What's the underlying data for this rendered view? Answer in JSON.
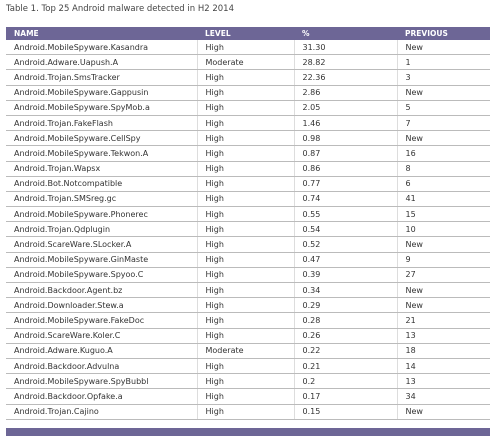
{
  "title": "Table 1. Top 25 Android malware detected in H2 2014",
  "table": {
    "header": [
      "NAME",
      "LEVEL",
      "%",
      "PREVIOUS"
    ],
    "rows": [
      [
        "Android.MobileSpyware.Kasandra",
        "High",
        "31.30",
        "New"
      ],
      [
        "Android.Adware.Uapush.A",
        "Moderate",
        "28.82",
        "1"
      ],
      [
        "Android.Trojan.SmsTracker",
        "High",
        "22.36",
        "3"
      ],
      [
        "Android.MobileSpyware.Gappusin",
        "High",
        "2.86",
        "New"
      ],
      [
        "Android.MobileSpyware.SpyMob.a",
        "High",
        "2.05",
        "5"
      ],
      [
        "Android.Trojan.FakeFlash",
        "High",
        "1.46",
        "7"
      ],
      [
        "Android.MobileSpyware.CellSpy",
        "High",
        "0.98",
        "New"
      ],
      [
        "Android.MobileSpyware.Tekwon.A",
        "High",
        "0.87",
        "16"
      ],
      [
        "Android.Trojan.Wapsx",
        "High",
        "0.86",
        "8"
      ],
      [
        "Android.Bot.Notcompatible",
        "High",
        "0.77",
        "6"
      ],
      [
        "Android.Trojan.SMSreg.gc",
        "High",
        "0.74",
        "41"
      ],
      [
        "Android.MobileSpyware.Phonerec",
        "High",
        "0.55",
        "15"
      ],
      [
        "Android.Trojan.Qdplugin",
        "High",
        "0.54",
        "10"
      ],
      [
        "Android.ScareWare.SLocker.A",
        "High",
        "0.52",
        "New"
      ],
      [
        "Android.MobileSpyware.GinMaste",
        "High",
        "0.47",
        "9"
      ],
      [
        "Android.MobileSpyware.Spyoo.C",
        "High",
        "0.39",
        "27"
      ],
      [
        "Android.Backdoor.Agent.bz",
        "High",
        "0.34",
        "New"
      ],
      [
        "Android.Downloader.Stew.a",
        "High",
        "0.29",
        "New"
      ],
      [
        "Android.MobileSpyware.FakeDoc",
        "High",
        "0.28",
        "21"
      ],
      [
        "Android.ScareWare.Koler.C",
        "High",
        "0.26",
        "13"
      ],
      [
        "Android.Adware.Kuguo.A",
        "Moderate",
        "0.22",
        "18"
      ],
      [
        "Android.Backdoor.Advulna",
        "High",
        "0.21",
        "14"
      ],
      [
        "Android.MobileSpyware.SpyBubbl",
        "High",
        "0.2",
        "13"
      ],
      [
        "Android.Backdoor.Opfake.a",
        "High",
        "0.17",
        "34"
      ],
      [
        "Android.Trojan.Cajino",
        "High",
        "0.15",
        "New"
      ]
    ]
  }
}
